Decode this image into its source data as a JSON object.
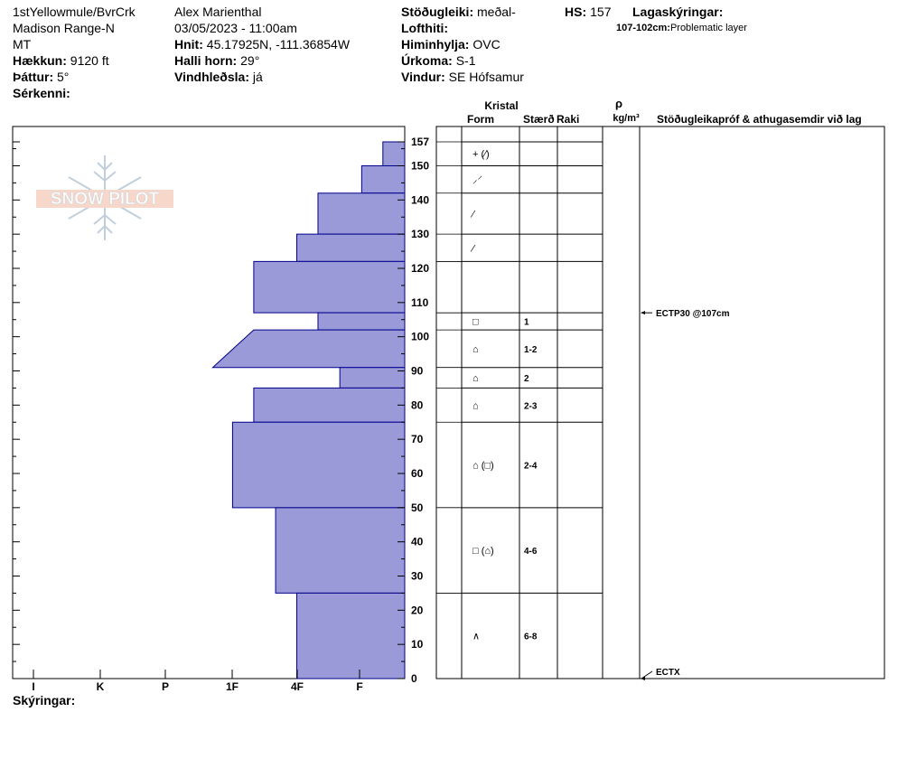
{
  "header": {
    "location": "1stYellowmule/BvrCrk",
    "range": "Madison Range-N",
    "state": "MT",
    "elevation_label": "Hækkun:",
    "elevation_value": "9120 ft",
    "aspect_label": "Þáttur:",
    "aspect_value": "5°",
    "features_label": "Sérkenni:",
    "observer": "Alex Marienthal",
    "datetime": "03/05/2023 - 11:00am",
    "coords_label": "Hnit:",
    "coords_value": "45.17925N, -111.36854W",
    "slope_label": "Halli horn:",
    "slope_value": "29°",
    "wind_loading_label": "Vindhleðsla:",
    "wind_loading_value": "já",
    "stability_label": "Stöðugleiki:",
    "stability_value": "meðal-",
    "air_temp_label": "Lofthiti:",
    "sky_label": "Himinhylja:",
    "sky_value": "OVC",
    "precip_label": "Úrkoma:",
    "precip_value": "S-1",
    "wind_label": "Vindur:",
    "wind_value": "SE Hófsamur",
    "hs_label": "HS:",
    "hs_value": "157",
    "layer_notes_label": "Lagaskýringar:",
    "layer_note_range": "107-102cm:",
    "layer_note_text": "Problematic layer"
  },
  "columns": {
    "crystal": "Kristal",
    "form": "Form",
    "size": "Stærð",
    "moisture": "Raki",
    "rho": "ρ",
    "density_unit": "kg/m³",
    "tests_comments": "Stöðugleikapróf & athugasemdir við lag"
  },
  "footer": {
    "notes_label": "Skýringar:"
  },
  "logo": {
    "text": "SNOW PILOT"
  },
  "chart_data": {
    "type": "snow_profile",
    "hardness_axis": [
      "I",
      "K",
      "P",
      "1F",
      "4F",
      "F"
    ],
    "depth_axis": {
      "min": 0,
      "max": 157,
      "ticks": [
        0,
        10,
        20,
        30,
        40,
        50,
        60,
        70,
        80,
        90,
        100,
        110,
        120,
        130,
        140,
        150,
        157
      ]
    },
    "hardness_layers": [
      {
        "bottom": 150,
        "top": 157,
        "hardness": 0.33
      },
      {
        "bottom": 142,
        "top": 150,
        "hardness": 0.65
      },
      {
        "bottom": 130,
        "top": 142,
        "hardness": 1.31
      },
      {
        "bottom": 122,
        "top": 130,
        "hardness": 1.63
      },
      {
        "bottom": 107,
        "top": 122,
        "hardness": 2.28
      },
      {
        "bottom": 102,
        "top": 107,
        "hardness": 1.31
      },
      {
        "bottom": 91,
        "top": 102,
        "hardness_bottom": 2.9,
        "hardness_top": 2.28
      },
      {
        "bottom": 85,
        "top": 91,
        "hardness": 0.98
      },
      {
        "bottom": 75,
        "top": 85,
        "hardness": 2.28
      },
      {
        "bottom": 50,
        "top": 75,
        "hardness": 2.6
      },
      {
        "bottom": 25,
        "top": 50,
        "hardness": 1.95
      },
      {
        "bottom": 0,
        "top": 25,
        "hardness": 1.63
      }
    ],
    "layer_boundaries": [
      157,
      150,
      142,
      130,
      122,
      107,
      102,
      91,
      85,
      75,
      50,
      25,
      0
    ],
    "crystal_rows": [
      {
        "center": 153.5,
        "form": "+ (⁄)",
        "size": ""
      },
      {
        "center": 146,
        "form": "⸝⸍",
        "size": ""
      },
      {
        "center": 136,
        "form": "⁄",
        "size": ""
      },
      {
        "center": 126,
        "form": "⁄",
        "size": ""
      },
      {
        "center": 104.5,
        "form": "□",
        "size": "1"
      },
      {
        "center": 96.5,
        "form": "⌂",
        "size": "1-2"
      },
      {
        "center": 88,
        "form": "⌂",
        "size": "2"
      },
      {
        "center": 80,
        "form": "⌂",
        "size": "2-3"
      },
      {
        "center": 62.5,
        "form": "⌂ (□)",
        "size": "2-4"
      },
      {
        "center": 37.5,
        "form": "□ (⌂)",
        "size": "4-6"
      },
      {
        "center": 12.5,
        "form": "∧",
        "size": "6-8"
      }
    ],
    "tests": [
      {
        "depth": 107,
        "label": "ECTP30 @107cm"
      },
      {
        "depth": 0,
        "label": "ECTX"
      }
    ],
    "fill_color": "#9a9ad8",
    "edge_color": "#00008b"
  }
}
